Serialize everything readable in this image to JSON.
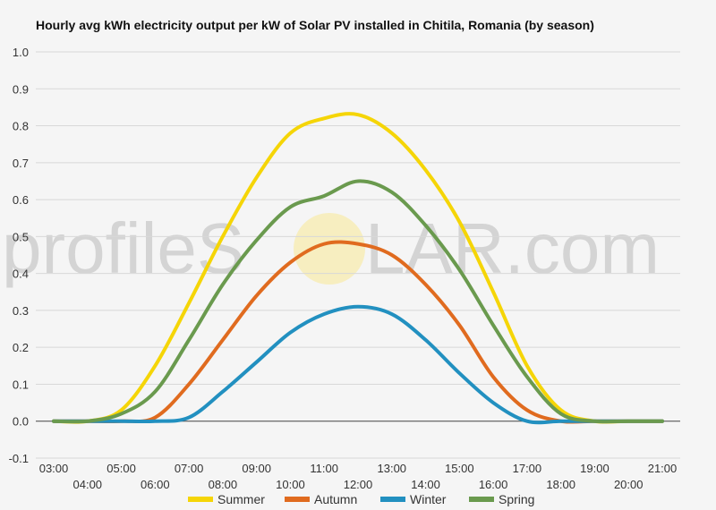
{
  "chart_data": {
    "type": "line",
    "title": "Hourly avg kWh electricity output per kW of Solar PV installed in Chitila, Romania (by season)",
    "watermark": {
      "prefix": "profileS",
      "suffix": "LAR.com"
    },
    "xlabel": "",
    "ylabel": "",
    "x": [
      "03:00",
      "04:00",
      "05:00",
      "06:00",
      "07:00",
      "08:00",
      "09:00",
      "10:00",
      "11:00",
      "12:00",
      "13:00",
      "14:00",
      "15:00",
      "16:00",
      "17:00",
      "18:00",
      "19:00",
      "20:00",
      "21:00"
    ],
    "ylim": [
      -0.1,
      1.0
    ],
    "yticks": [
      "1.0",
      "0.9",
      "0.8",
      "0.7",
      "0.6",
      "0.5",
      "0.4",
      "0.3",
      "0.2",
      "0.1",
      "0.0",
      "-0.1"
    ],
    "grid": true,
    "legend_position": "bottom",
    "series": [
      {
        "name": "Summer",
        "color": "#f5d507",
        "values": [
          0.0,
          0.0,
          0.03,
          0.15,
          0.32,
          0.5,
          0.66,
          0.78,
          0.82,
          0.83,
          0.78,
          0.68,
          0.54,
          0.35,
          0.15,
          0.03,
          0.0,
          0.0,
          0.0
        ]
      },
      {
        "name": "Autumn",
        "color": "#e06b1f",
        "values": [
          0.0,
          0.0,
          0.0,
          0.01,
          0.1,
          0.22,
          0.34,
          0.43,
          0.48,
          0.48,
          0.45,
          0.37,
          0.26,
          0.12,
          0.03,
          0.0,
          0.0,
          0.0,
          0.0
        ]
      },
      {
        "name": "Winter",
        "color": "#2290c0",
        "values": [
          0.0,
          0.0,
          0.0,
          0.0,
          0.01,
          0.08,
          0.16,
          0.24,
          0.29,
          0.31,
          0.29,
          0.22,
          0.13,
          0.05,
          0.0,
          0.0,
          0.0,
          0.0,
          0.0
        ]
      },
      {
        "name": "Spring",
        "color": "#6a9a4e",
        "values": [
          0.0,
          0.0,
          0.02,
          0.08,
          0.22,
          0.37,
          0.49,
          0.58,
          0.61,
          0.65,
          0.62,
          0.53,
          0.41,
          0.26,
          0.12,
          0.02,
          0.0,
          0.0,
          0.0
        ]
      }
    ]
  }
}
